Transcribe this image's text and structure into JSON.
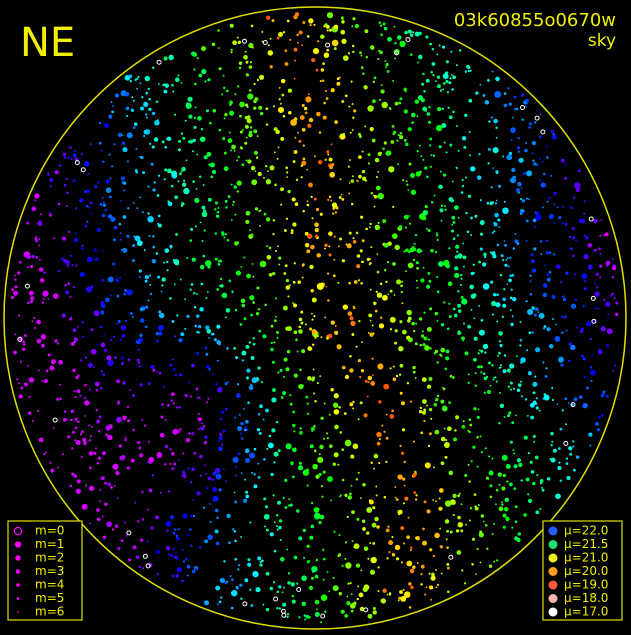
{
  "corner_label": "NE",
  "image_id": "03k60855o0670w",
  "view": "sky",
  "magnitude_legend": [
    "m=0",
    "m=1",
    "m=2",
    "m=3",
    "m=4",
    "m=5",
    "m=6"
  ],
  "brightness_legend": [
    {
      "label": "μ=22.0",
      "color": "#2a5cff"
    },
    {
      "label": "μ=21.5",
      "color": "#20e070"
    },
    {
      "label": "μ=21.0",
      "color": "#f0f020"
    },
    {
      "label": "μ=20.0",
      "color": "#ffa020"
    },
    {
      "label": "μ=19.0",
      "color": "#ff5a40"
    },
    {
      "label": "μ=18.0",
      "color": "#ffb0b0"
    },
    {
      "label": "μ=17.0",
      "color": "#ffffff"
    }
  ]
}
